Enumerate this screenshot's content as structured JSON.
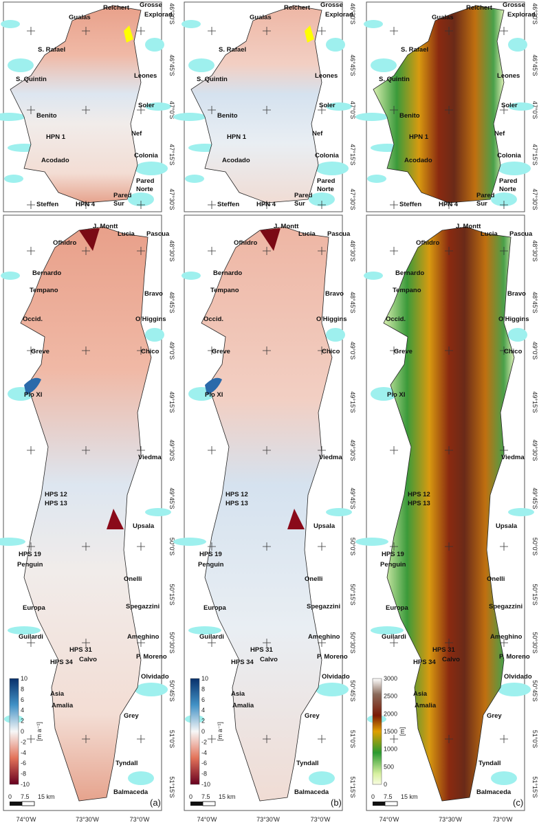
{
  "panels": [
    {
      "letter": "(a)",
      "colorbar": {
        "unit": "[m a⁻¹]",
        "ticks": [
          "10",
          "8",
          "6",
          "4",
          "2",
          "0",
          "-2",
          "-4",
          "-6",
          "-8",
          "-10"
        ],
        "range": [
          -10,
          10
        ],
        "colormap": "red-white-blue"
      }
    },
    {
      "letter": "(b)",
      "colorbar": {
        "unit": "[m a⁻¹]",
        "ticks": [
          "10",
          "8",
          "6",
          "4",
          "2",
          "0",
          "-2",
          "-4",
          "-6",
          "-8",
          "-10"
        ],
        "range": [
          -10,
          10
        ],
        "colormap": "red-white-blue"
      }
    },
    {
      "letter": "(c)",
      "colorbar": {
        "unit": "[m]",
        "ticks": [
          "3000",
          "2500",
          "2000",
          "1500",
          "1000",
          "500",
          "0"
        ],
        "range": [
          0,
          3000
        ],
        "colormap": "elevation green-yellow-brown-white"
      }
    }
  ],
  "north_map": {
    "glaciers": [
      "Reichert",
      "Grosse",
      "Gualas",
      "Explorad.",
      "S. Rafael",
      "Leones",
      "S. Quintin",
      "Soler",
      "Benito",
      "Nef",
      "HPN 1",
      "Colonia",
      "Acodado",
      "Pared",
      "Norte",
      "Pared",
      "Sur",
      "Steffen",
      "HPN 4"
    ],
    "lat_ticks": [
      "46°30'S",
      "46°45'S",
      "47°0'S",
      "47°15'S",
      "47°30'S"
    ]
  },
  "south_map": {
    "glaciers": [
      "J. Montt",
      "Lucia",
      "Pascua",
      "Ofhidro",
      "Bernardo",
      "Tempano",
      "Bravo",
      "Occid.",
      "O'Higgins",
      "Greve",
      "Chico",
      "Pio XI",
      "Viedma",
      "HPS 12",
      "HPS 13",
      "Upsala",
      "HPS 19",
      "Penguin",
      "Onelli",
      "Spegazzini",
      "Europa",
      "Guilardi",
      "Ameghino",
      "P. Moreno",
      "HPS 31",
      "Calvo",
      "HPS 34",
      "Olvidado",
      "Asia",
      "Amalia",
      "Grey",
      "Tyndall",
      "Balmaceda"
    ],
    "lat_ticks": [
      "48°30'S",
      "48°45'S",
      "49°0'S",
      "49°15'S",
      "49°30'S",
      "49°45'S",
      "50°0'S",
      "50°15'S",
      "50°30'S",
      "50°45'S",
      "51°0'S",
      "51°15'S"
    ]
  },
  "lon_ticks": [
    "74°0'W",
    "73°30'W",
    "73°0'W"
  ],
  "scale_bar": {
    "labels": [
      "0",
      "7.5",
      "15 km"
    ]
  },
  "colors": {
    "water": "#9ef0ee",
    "outline": "#222222",
    "thinning": "#b2182b",
    "thickening": "#2166ac",
    "no_data": "#ffff00"
  }
}
